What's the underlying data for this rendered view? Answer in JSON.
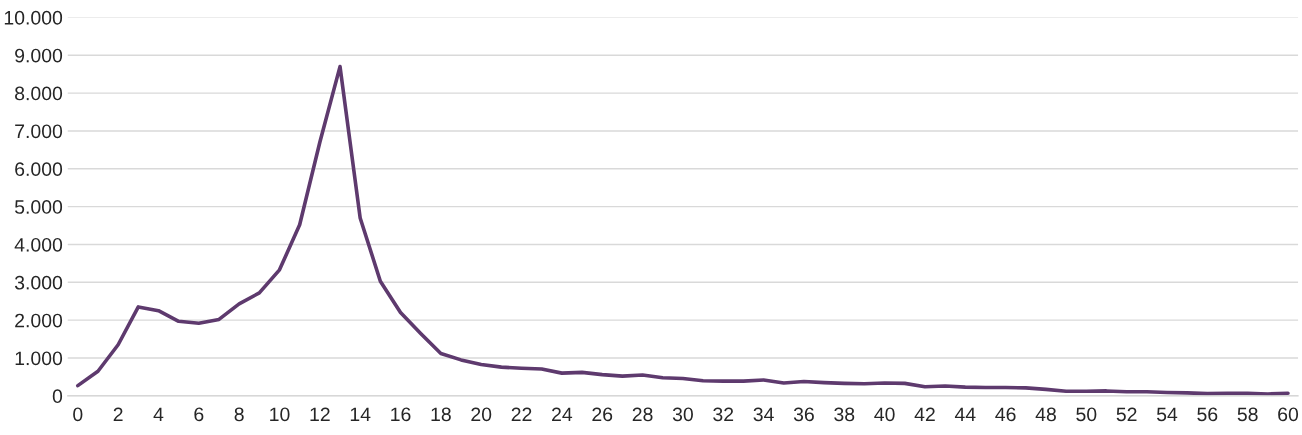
{
  "chart_data": {
    "type": "line",
    "categories": [
      "0",
      null,
      "2",
      null,
      "4",
      null,
      "6",
      null,
      "8",
      null,
      "10",
      null,
      "12",
      null,
      "14",
      null,
      "16",
      null,
      "18",
      null,
      "20",
      null,
      "22",
      null,
      "24",
      null,
      "26",
      null,
      "28",
      null,
      "30",
      null,
      "32",
      null,
      "34",
      null,
      "36",
      null,
      "38",
      null,
      "40",
      null,
      "42",
      null,
      "44",
      null,
      "46",
      null,
      "48",
      null,
      "50",
      null,
      "52",
      null,
      "54",
      null,
      "56",
      null,
      "58",
      null,
      "60"
    ],
    "series": [
      {
        "color": "#5e3a6e",
        "values": [
          270,
          650,
          1350,
          2350,
          2250,
          1970,
          1920,
          2020,
          2430,
          2720,
          3330,
          4520,
          6700,
          8700,
          4700,
          3030,
          2200,
          1650,
          1120,
          950,
          830,
          760,
          730,
          710,
          600,
          620,
          560,
          520,
          550,
          480,
          460,
          400,
          390,
          390,
          420,
          340,
          380,
          350,
          330,
          320,
          340,
          330,
          240,
          260,
          230,
          220,
          220,
          210,
          170,
          120,
          120,
          130,
          110,
          110,
          90,
          80,
          60,
          70,
          70,
          50,
          70
        ]
      }
    ],
    "ylim": [
      0,
      10000
    ],
    "yticks": [
      {
        "value": 0,
        "label": "0"
      },
      {
        "value": 1000,
        "label": "1.000"
      },
      {
        "value": 2000,
        "label": "2.000"
      },
      {
        "value": 3000,
        "label": "3.000"
      },
      {
        "value": 4000,
        "label": "4.000"
      },
      {
        "value": 5000,
        "label": "5.000"
      },
      {
        "value": 6000,
        "label": "6.000"
      },
      {
        "value": 7000,
        "label": "7.000"
      },
      {
        "value": 8000,
        "label": "8.000"
      },
      {
        "value": 9000,
        "label": "9.000"
      },
      {
        "value": 10000,
        "label": "10.000"
      }
    ],
    "grid": "y",
    "marker": "none",
    "line_style": "solid"
  }
}
